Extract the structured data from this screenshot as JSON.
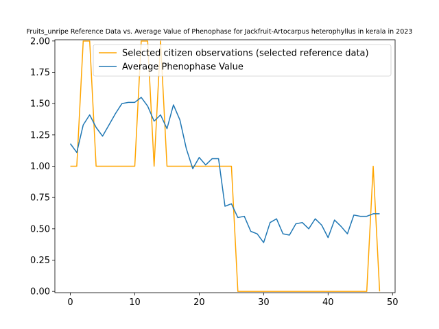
{
  "chart_data": {
    "type": "line",
    "title": "Fruits_unripe Reference Data vs. Average Value of Phenophase for Jackfruit-Artocarpus heterophyllus in kerala in 2023",
    "xlabel": "",
    "ylabel": "",
    "xlim": [
      -2.4,
      50.4
    ],
    "ylim": [
      -0.01,
      2.01
    ],
    "xticks": [
      0,
      10,
      20,
      30,
      40,
      50
    ],
    "yticks": [
      0.0,
      0.25,
      0.5,
      0.75,
      1.0,
      1.25,
      1.5,
      1.75,
      2.0
    ],
    "ytick_labels": [
      "0.00",
      "0.25",
      "0.50",
      "0.75",
      "1.00",
      "1.25",
      "1.50",
      "1.75",
      "2.00"
    ],
    "grid": false,
    "legend_placement": "top-right",
    "series": [
      {
        "name": "Selected citizen observations (selected reference data)",
        "color": "#ffa500",
        "x": [
          0,
          1,
          2,
          3,
          4,
          5,
          6,
          7,
          8,
          9,
          10,
          11,
          12,
          13,
          14,
          15,
          16,
          17,
          18,
          19,
          20,
          21,
          22,
          23,
          24,
          25,
          26,
          27,
          28,
          29,
          30,
          31,
          32,
          33,
          34,
          35,
          36,
          37,
          38,
          39,
          40,
          41,
          42,
          43,
          44,
          45,
          46,
          47,
          48
        ],
        "y": [
          1,
          1,
          2,
          2,
          1,
          1,
          1,
          1,
          1,
          1,
          1,
          2,
          2,
          1,
          2,
          1,
          1,
          1,
          1,
          1,
          1,
          1,
          1,
          1,
          1,
          1,
          0,
          0,
          0,
          0,
          0,
          0,
          0,
          0,
          0,
          0,
          0,
          0,
          0,
          0,
          0,
          0,
          0,
          0,
          0,
          0,
          0,
          1,
          0
        ]
      },
      {
        "name": "Average Phenophase Value",
        "color": "#1f77b4",
        "x": [
          0,
          1,
          2,
          3,
          4,
          5,
          6,
          7,
          8,
          9,
          10,
          11,
          12,
          13,
          14,
          15,
          16,
          17,
          18,
          19,
          20,
          21,
          22,
          23,
          24,
          25,
          26,
          27,
          28,
          29,
          30,
          31,
          32,
          33,
          34,
          35,
          36,
          37,
          38,
          39,
          40,
          41,
          42,
          43,
          44,
          45,
          46,
          47,
          48
        ],
        "y": [
          1.18,
          1.11,
          1.33,
          1.41,
          1.31,
          1.24,
          1.33,
          1.42,
          1.5,
          1.51,
          1.51,
          1.55,
          1.48,
          1.36,
          1.41,
          1.3,
          1.49,
          1.37,
          1.14,
          0.98,
          1.07,
          1.01,
          1.06,
          1.06,
          0.68,
          0.7,
          0.59,
          0.6,
          0.48,
          0.46,
          0.39,
          0.55,
          0.58,
          0.46,
          0.45,
          0.54,
          0.55,
          0.5,
          0.58,
          0.53,
          0.43,
          0.57,
          0.52,
          0.46,
          0.61,
          0.6,
          0.6,
          0.62,
          0.62
        ]
      }
    ]
  }
}
